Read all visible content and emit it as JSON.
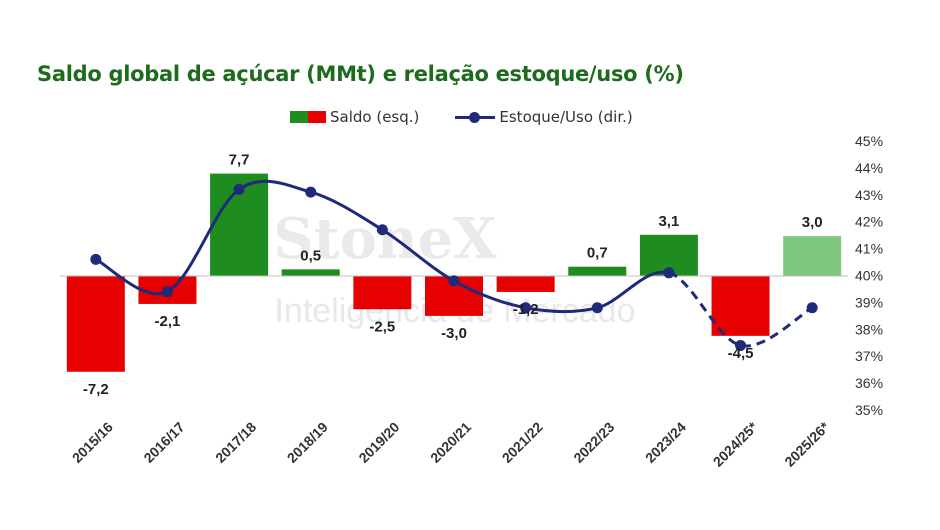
{
  "title": "Saldo global de açúcar (MMt) e relação estoque/uso (%)",
  "legend": {
    "saldo_label": "Saldo (esq.)",
    "estoque_label": "Estoque/Uso (dir.)"
  },
  "watermark": {
    "brand": "StoneX",
    "tagline": "Inteligência de Mercado"
  },
  "colors": {
    "positive": "#1e8c1e",
    "positive_projected": "#7fc77f",
    "negative": "#e60000",
    "line": "#1f2a7a",
    "title": "#1e6b1e"
  },
  "chart_data": {
    "type": "bar",
    "categories": [
      "2015/16",
      "2016/17",
      "2017/18",
      "2018/19",
      "2019/20",
      "2020/21",
      "2021/22",
      "2022/23",
      "2023/24",
      "2024/25*",
      "2025/26*"
    ],
    "series": [
      {
        "name": "Saldo (esq.)",
        "type": "bar",
        "axis": "left",
        "values": [
          -7.2,
          -2.1,
          7.7,
          0.5,
          -2.5,
          -3.0,
          -1.2,
          0.7,
          3.1,
          -4.5,
          3.0
        ],
        "labels": [
          "-7,2",
          "-2,1",
          "7,7",
          "0,5",
          "-2,5",
          "-3,0",
          "-1,2",
          "0,7",
          "3,1",
          "-4,5",
          "3,0"
        ],
        "projected": [
          false,
          false,
          false,
          false,
          false,
          false,
          false,
          false,
          false,
          true,
          true
        ]
      },
      {
        "name": "Estoque/Uso (dir.)",
        "type": "line",
        "axis": "right",
        "values": [
          40.6,
          39.4,
          43.2,
          43.1,
          41.7,
          39.8,
          38.8,
          38.8,
          40.1,
          37.4,
          38.8
        ],
        "dashed_from_index": 8
      }
    ],
    "y_left_lim": [
      -10,
      10
    ],
    "y_right": {
      "lim": [
        35,
        45
      ],
      "ticks": [
        "35%",
        "36%",
        "37%",
        "38%",
        "39%",
        "40%",
        "41%",
        "42%",
        "43%",
        "44%",
        "45%"
      ]
    },
    "grid": false,
    "legend_position": "top"
  }
}
